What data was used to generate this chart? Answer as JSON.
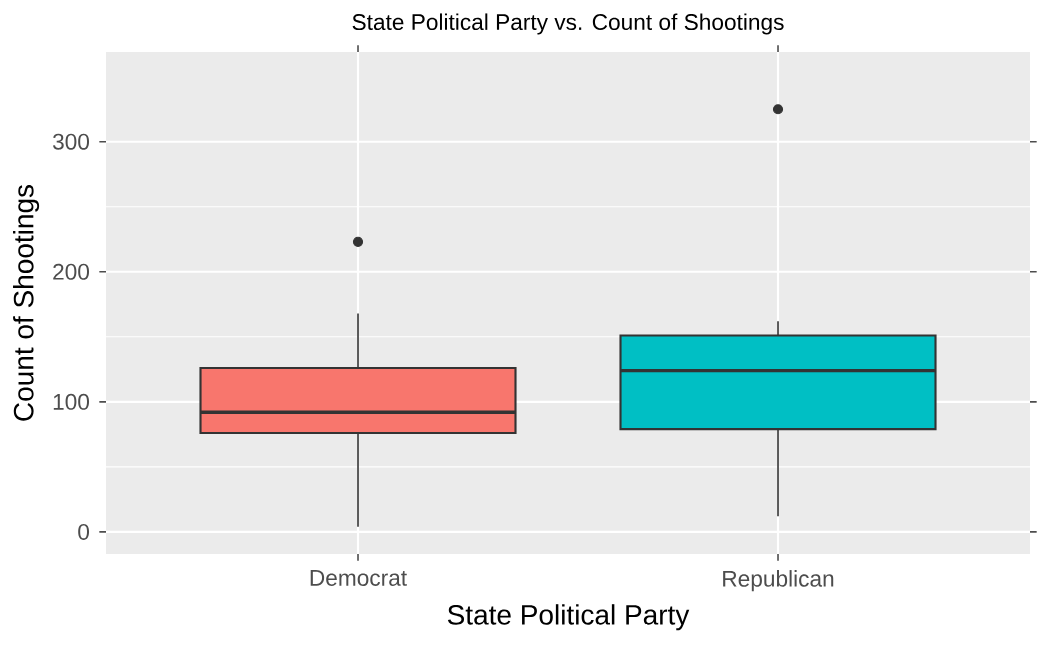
{
  "chart_data": {
    "type": "box",
    "title": "State Political Party vs. Count of Shootings",
    "xlabel": "State Political Party",
    "ylabel": "Count of Shootings",
    "categories": [
      "Democrat",
      "Republican"
    ],
    "colors": [
      "#f8766d",
      "#00bfc4"
    ],
    "boxes": [
      {
        "low": 4,
        "q1": 76,
        "median": 92,
        "q3": 126,
        "high": 168,
        "outliers": [
          223
        ]
      },
      {
        "low": 12,
        "q1": 79,
        "median": 124,
        "q3": 151,
        "high": 162,
        "outliers": [
          325
        ]
      }
    ],
    "ylim": [
      -17,
      369
    ],
    "yticks": [
      0,
      100,
      200,
      300
    ],
    "grid": true
  }
}
